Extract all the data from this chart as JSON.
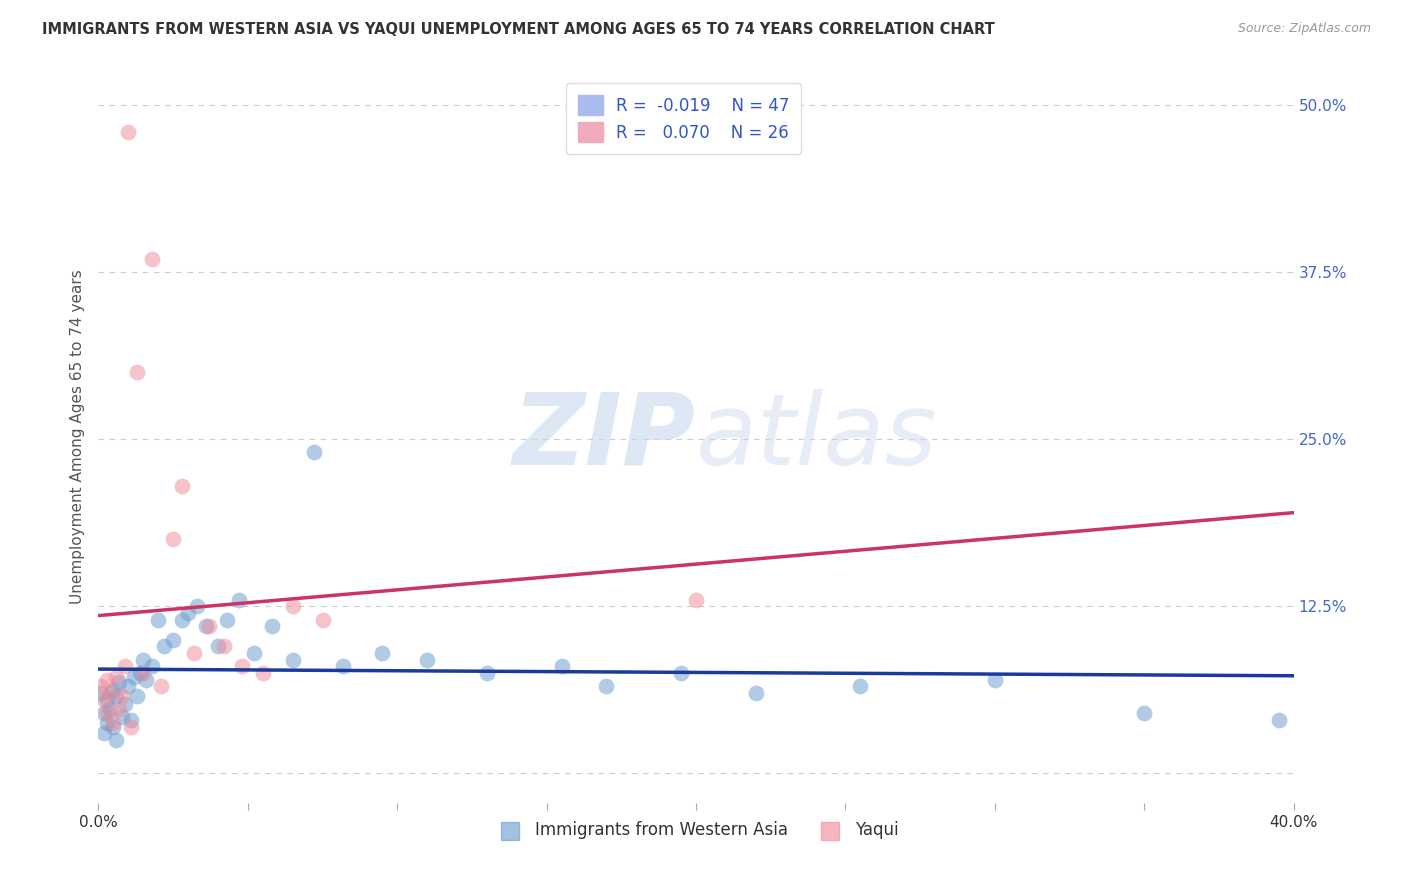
{
  "title": "IMMIGRANTS FROM WESTERN ASIA VS YAQUI UNEMPLOYMENT AMONG AGES 65 TO 74 YEARS CORRELATION CHART",
  "source": "Source: ZipAtlas.com",
  "ylabel": "Unemployment Among Ages 65 to 74 years",
  "yticklabels_right": [
    "50.0%",
    "37.5%",
    "25.0%",
    "12.5%",
    ""
  ],
  "xlim": [
    0.0,
    0.4
  ],
  "ylim": [
    -0.022,
    0.525
  ],
  "yticks_right": [
    0.5,
    0.375,
    0.25,
    0.125,
    0.0
  ],
  "xticks": [
    0.0,
    0.05,
    0.1,
    0.15,
    0.2,
    0.25,
    0.3,
    0.35,
    0.4
  ],
  "grid_color": "#cccccc",
  "background_color": "#ffffff",
  "blue_color": "#6699cc",
  "pink_color": "#ee8899",
  "trend_blue": "#1a3a9e",
  "trend_pink": "#cc3366",
  "legend_label1": "Immigrants from Western Asia",
  "legend_label2": "Yaqui",
  "R1": "-0.019",
  "N1": "47",
  "R2": "0.070",
  "N2": "26",
  "watermark_zip": "ZIP",
  "watermark_atlas": "atlas",
  "blue_scatter_x": [
    0.001,
    0.002,
    0.002,
    0.003,
    0.003,
    0.004,
    0.005,
    0.005,
    0.006,
    0.006,
    0.007,
    0.008,
    0.009,
    0.01,
    0.011,
    0.012,
    0.013,
    0.014,
    0.015,
    0.016,
    0.018,
    0.02,
    0.022,
    0.025,
    0.028,
    0.03,
    0.033,
    0.036,
    0.04,
    0.043,
    0.047,
    0.052,
    0.058,
    0.065,
    0.072,
    0.082,
    0.095,
    0.11,
    0.13,
    0.155,
    0.17,
    0.195,
    0.22,
    0.255,
    0.3,
    0.35,
    0.395
  ],
  "blue_scatter_y": [
    0.06,
    0.045,
    0.03,
    0.055,
    0.038,
    0.048,
    0.062,
    0.035,
    0.058,
    0.025,
    0.068,
    0.042,
    0.052,
    0.065,
    0.04,
    0.072,
    0.058,
    0.075,
    0.085,
    0.07,
    0.08,
    0.115,
    0.095,
    0.1,
    0.115,
    0.12,
    0.125,
    0.11,
    0.095,
    0.115,
    0.13,
    0.09,
    0.11,
    0.085,
    0.24,
    0.08,
    0.09,
    0.085,
    0.075,
    0.08,
    0.065,
    0.075,
    0.06,
    0.065,
    0.07,
    0.045,
    0.04
  ],
  "pink_scatter_x": [
    0.001,
    0.002,
    0.003,
    0.003,
    0.004,
    0.005,
    0.006,
    0.007,
    0.008,
    0.009,
    0.01,
    0.011,
    0.013,
    0.015,
    0.018,
    0.021,
    0.025,
    0.028,
    0.032,
    0.037,
    0.042,
    0.048,
    0.055,
    0.065,
    0.075,
    0.2
  ],
  "pink_scatter_y": [
    0.065,
    0.055,
    0.07,
    0.045,
    0.06,
    0.038,
    0.072,
    0.048,
    0.058,
    0.08,
    0.48,
    0.035,
    0.3,
    0.075,
    0.385,
    0.065,
    0.175,
    0.215,
    0.09,
    0.11,
    0.095,
    0.08,
    0.075,
    0.125,
    0.115,
    0.13
  ],
  "blue_trend_x": [
    0.0,
    0.4
  ],
  "blue_trend_y": [
    0.078,
    0.073
  ],
  "pink_trend_x": [
    0.0,
    0.4
  ],
  "pink_trend_y": [
    0.118,
    0.195
  ]
}
